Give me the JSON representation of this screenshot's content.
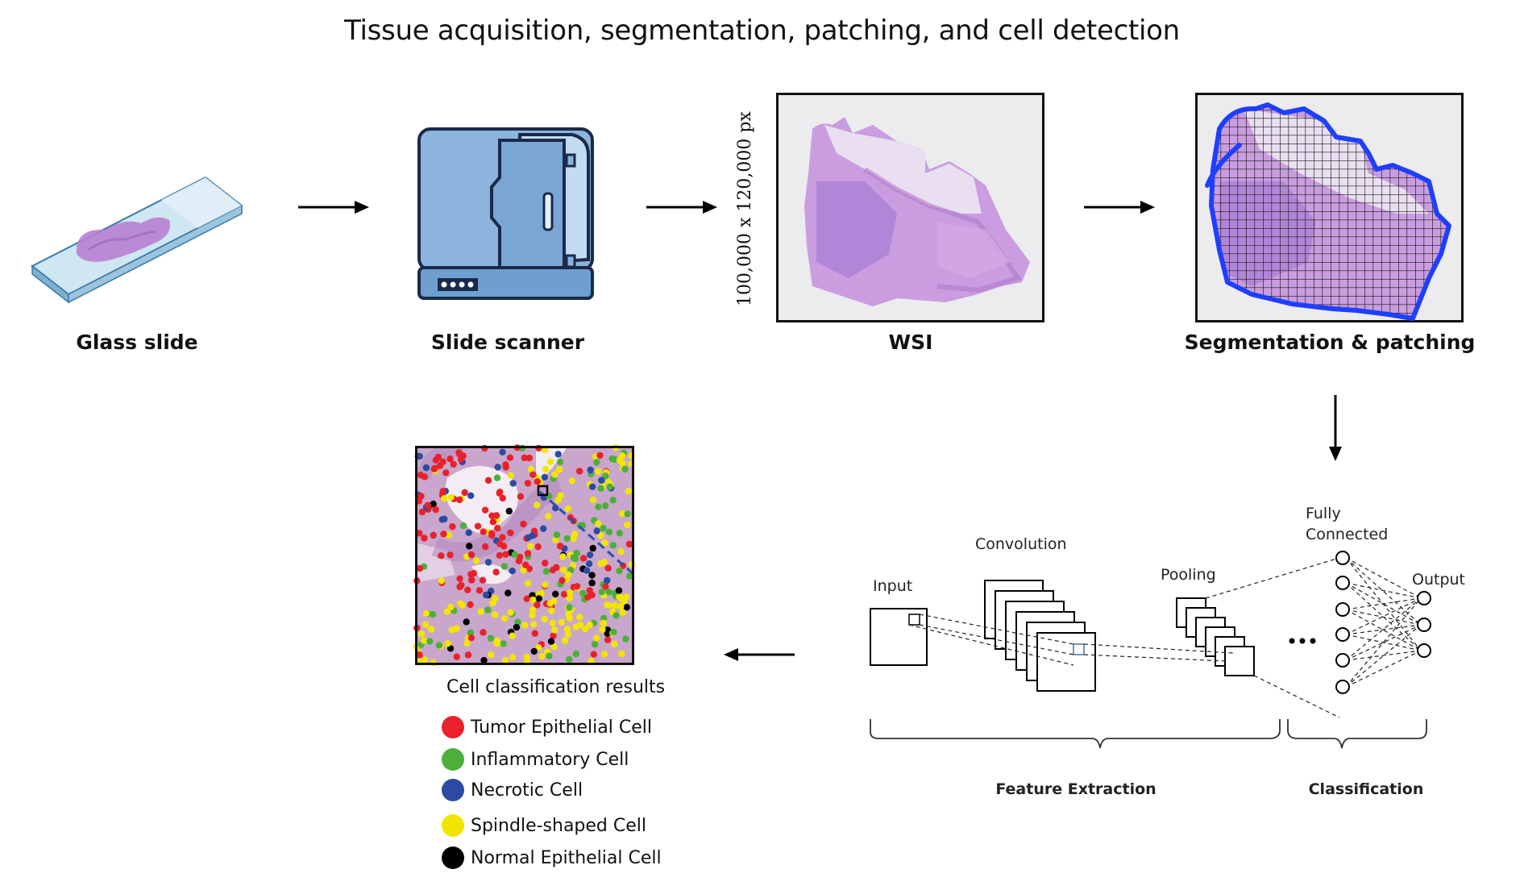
{
  "title": "Tissue acquisition, segmentation, patching, and cell detection",
  "stages": {
    "glass_slide": "Glass slide",
    "slide_scanner": "Slide scanner",
    "wsi": "WSI",
    "wsi_dimensions": "100,000 x 120,000 px",
    "segmentation": "Segmentation & patching"
  },
  "cnn": {
    "input": "Input",
    "convolution": "Convolution",
    "pooling": "Pooling",
    "fully_connected_1": "Fully",
    "fully_connected_2": "Connected",
    "output": "Output",
    "feature_extraction": "Feature Extraction",
    "classification": "Classification"
  },
  "results": {
    "title": "Cell classification results",
    "legend": [
      {
        "label": "Tumor Epithelial Cell",
        "color": "#e8212b"
      },
      {
        "label": "Inflammatory Cell",
        "color": "#4caf3c"
      },
      {
        "label": "Necrotic Cell",
        "color": "#2b4ba3"
      },
      {
        "label": "Spindle-shaped Cell",
        "color": "#f2e600"
      },
      {
        "label": "Normal Epithelial Cell",
        "color": "#000000"
      }
    ]
  },
  "icons": [
    "glass-slide-icon",
    "slide-scanner-icon",
    "wsi-image",
    "segmentation-grid-image",
    "cnn-diagram",
    "cell-classification-image"
  ]
}
